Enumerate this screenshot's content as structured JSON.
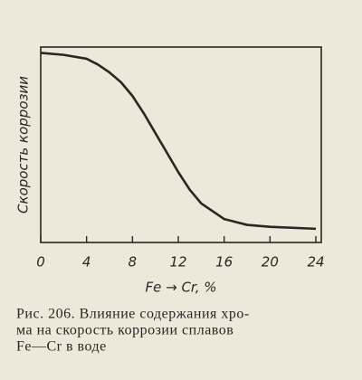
{
  "chart_data": {
    "type": "line",
    "x_label": "Fe → Cr, %",
    "y_label": "Скорость коррозии",
    "caption": [
      "Рис. 206. Влияние содержания хро-",
      "ма на скорость коррозии сплавов",
      "Fe—Cr в воде"
    ],
    "x": [
      0,
      2,
      4,
      5,
      6,
      7,
      8,
      9,
      10,
      11,
      12,
      13,
      14,
      16,
      18,
      20,
      24
    ],
    "series": [
      {
        "color": "#2a2622",
        "values": [
          97,
          96,
          94,
          91,
          87,
          82,
          75,
          66,
          56,
          46,
          36,
          27,
          20,
          12,
          9,
          8,
          7
        ]
      }
    ],
    "xlim": [
      0,
      24
    ],
    "ylim": [
      0,
      100
    ],
    "xticks": [
      0,
      4,
      8,
      12,
      16,
      20,
      24
    ]
  }
}
